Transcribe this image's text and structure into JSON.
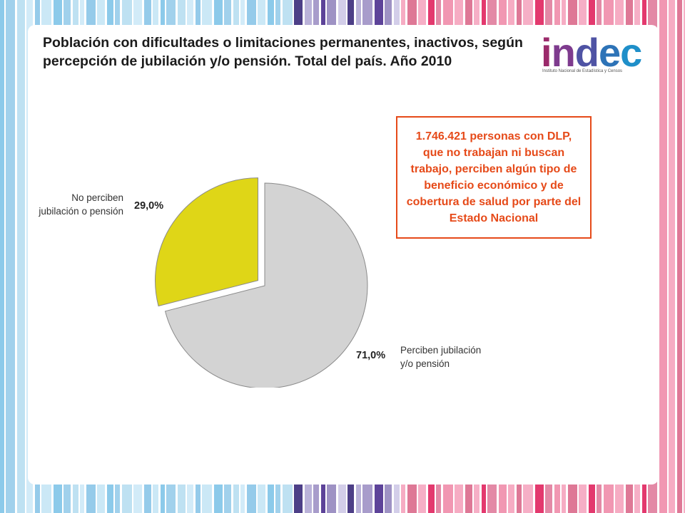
{
  "title": "Población con dificultades o limitaciones permanentes, inactivos, según percepción de jubilación y/o pensión. Total del país. Año 2010",
  "logo": {
    "letters": [
      "i",
      "n",
      "d",
      "e",
      "c"
    ],
    "subtitle": "Instituto Nacional de Estadística y Censos"
  },
  "callout_text": "1.746.421 personas con DLP, que no trabajan ni buscan trabajo, perciben algún tipo de beneficio económico y de cobertura de salud por parte del Estado Nacional",
  "colors": {
    "no_perciben": "#dfd617",
    "perciben": "#d3d3d3",
    "callout": "#e64a19"
  },
  "chart_data": {
    "type": "pie",
    "title": "",
    "slices": [
      {
        "label": "No perciben\njubilación  o  pensión",
        "value": 29.0,
        "value_label": "29,0%",
        "color": "#dfd617",
        "exploded": true
      },
      {
        "label": "Perciben jubilación\ny/o  pensión",
        "value": 71.0,
        "value_label": "71,0%",
        "color": "#d3d3d3",
        "exploded": false
      }
    ]
  }
}
